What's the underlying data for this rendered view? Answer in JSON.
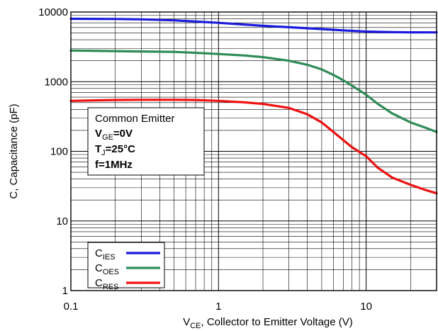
{
  "chart_data": {
    "type": "line",
    "xlabel": {
      "main": "V",
      "sub": "CE",
      "rest": ", Collector to Emitter Voltage (V)"
    },
    "ylabel": "C, Capacitance (pF)",
    "xscale": "log",
    "yscale": "log",
    "xlim": [
      0.1,
      30
    ],
    "ylim": [
      1,
      10000
    ],
    "grid": true,
    "x_ticks": [
      {
        "value": 0.1,
        "label": "0.1"
      },
      {
        "value": 1,
        "label": "1"
      },
      {
        "value": 10,
        "label": "10"
      }
    ],
    "y_ticks": [
      {
        "value": 1,
        "label": "1"
      },
      {
        "value": 10,
        "label": "10"
      },
      {
        "value": 100,
        "label": "100"
      },
      {
        "value": 1000,
        "label": "1000"
      },
      {
        "value": 10000,
        "label": "10000"
      }
    ],
    "annotation": [
      {
        "main": "Common Emitter",
        "sub": "",
        "rest": "",
        "bold": false
      },
      {
        "main": "V",
        "sub": "GE",
        "rest": "=0V",
        "bold": true
      },
      {
        "main": "T",
        "sub": "J",
        "rest": "=25°C",
        "bold": true
      },
      {
        "main": "f=1MHz",
        "sub": "",
        "rest": "",
        "bold": true
      }
    ],
    "legend_position": "bottom-left",
    "series": [
      {
        "name": {
          "main": "C",
          "sub": "IES"
        },
        "color": "#1a1adc",
        "x": [
          0.1,
          0.2,
          0.3,
          0.5,
          0.7,
          1,
          1.5,
          2,
          3,
          5,
          7,
          10,
          15,
          20,
          30
        ],
        "y": [
          8000,
          7950,
          7850,
          7600,
          7300,
          7000,
          6600,
          6350,
          6050,
          5700,
          5450,
          5250,
          5150,
          5120,
          5100
        ]
      },
      {
        "name": {
          "main": "C",
          "sub": "OES"
        },
        "color": "#2e8b57",
        "x": [
          0.1,
          0.2,
          0.3,
          0.5,
          0.7,
          1,
          1.5,
          2,
          3,
          4,
          5,
          6,
          7,
          8,
          10,
          12,
          15,
          20,
          25,
          30
        ],
        "y": [
          2800,
          2750,
          2720,
          2680,
          2600,
          2500,
          2380,
          2250,
          2000,
          1750,
          1500,
          1250,
          1050,
          880,
          650,
          480,
          350,
          260,
          220,
          190
        ]
      },
      {
        "name": {
          "main": "C",
          "sub": "RES"
        },
        "color": "#ee1111",
        "x": [
          0.1,
          0.2,
          0.3,
          0.5,
          0.7,
          1,
          1.5,
          2,
          3,
          4,
          5,
          6,
          7,
          8,
          10,
          12,
          15,
          20,
          25,
          30
        ],
        "y": [
          530,
          545,
          550,
          550,
          545,
          530,
          505,
          480,
          420,
          340,
          260,
          190,
          145,
          115,
          85,
          58,
          42,
          33,
          28,
          25
        ]
      }
    ]
  }
}
